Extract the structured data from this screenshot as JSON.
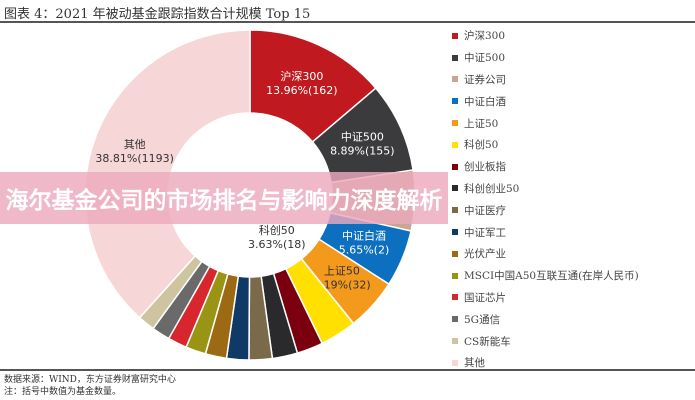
{
  "title": "图表 4：2021 年被动基金跟踪指数合计规模 Top 15",
  "footer": {
    "source": "数据来源：WIND，东方证券财富研究中心",
    "note": "注：括号中数值为基金数量。"
  },
  "banner": "海尔基金公司的市场排名与影响力深度解析",
  "chart_data": {
    "type": "pie",
    "donut": true,
    "title": "2021 年被动基金跟踪指数合计规模 Top 15",
    "legend_position": "right",
    "slices": [
      {
        "name": "沪深300",
        "value": 13.96,
        "count": 162,
        "label": "13.96%(162)",
        "color": "#c0191f"
      },
      {
        "name": "中证500",
        "value": 8.89,
        "count": 155,
        "label": "8.89%(155)",
        "color": "#3b3b3d"
      },
      {
        "name": "证券公司",
        "value": 6.0,
        "color": "#c9a593"
      },
      {
        "name": "中证白酒",
        "value": 5.65,
        "count": 2,
        "label": "5.65%(2)",
        "color": "#0d6fbf"
      },
      {
        "name": "上证50",
        "value": 5.19,
        "count": 32,
        "label": "5.19%(32)",
        "color": "#f39a1c"
      },
      {
        "name": "科创50",
        "value": 3.63,
        "count": 18,
        "label": "3.63%(18)",
        "color": "#ffe000"
      },
      {
        "name": "创业板指",
        "value": 2.6,
        "color": "#7a0010"
      },
      {
        "name": "科创创业50",
        "value": 2.5,
        "color": "#2a2a2c"
      },
      {
        "name": "中证医疗",
        "value": 2.3,
        "color": "#7b6a4a"
      },
      {
        "name": "中证军工",
        "value": 2.2,
        "color": "#0f3a66"
      },
      {
        "name": "光伏产业",
        "value": 2.1,
        "color": "#9b6a12"
      },
      {
        "name": "MSCI中国A50互联互通(在岸人民币)",
        "value": 2.0,
        "color": "#9a9414"
      },
      {
        "name": "国证芯片",
        "value": 1.9,
        "color": "#d8262e"
      },
      {
        "name": "5G通信",
        "value": 1.8,
        "color": "#6a6a6a"
      },
      {
        "name": "CS新能车",
        "value": 1.7,
        "color": "#cfc4a0"
      },
      {
        "name": "其他",
        "value": 38.81,
        "count": 1193,
        "label": "38.81%(1193)",
        "color": "#f7d6d8"
      }
    ]
  }
}
